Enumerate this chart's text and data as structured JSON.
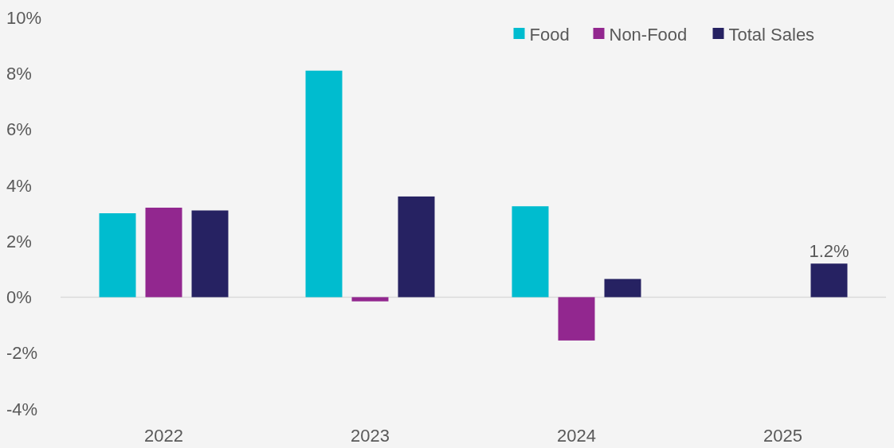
{
  "chart_data": {
    "type": "bar",
    "categories": [
      "2022",
      "2023",
      "2024",
      "2025"
    ],
    "series": [
      {
        "name": "Food",
        "color": "#00bccf",
        "values": [
          3.0,
          8.1,
          3.25,
          null
        ]
      },
      {
        "name": "Non-Food",
        "color": "#92278f",
        "values": [
          3.2,
          -0.15,
          -1.55,
          null
        ]
      },
      {
        "name": "Total Sales",
        "color": "#262262",
        "values": [
          3.1,
          3.6,
          0.65,
          1.2
        ],
        "value_labels": [
          null,
          null,
          null,
          "1.2%"
        ]
      }
    ],
    "ylim": [
      -4,
      10
    ],
    "yticks": [
      {
        "value": -4,
        "label": "-4%"
      },
      {
        "value": -2,
        "label": "-2%"
      },
      {
        "value": 0,
        "label": "0%"
      },
      {
        "value": 2,
        "label": "2%"
      },
      {
        "value": 4,
        "label": "4%"
      },
      {
        "value": 6,
        "label": "6%"
      },
      {
        "value": 8,
        "label": "8%"
      },
      {
        "value": 10,
        "label": "10%"
      }
    ],
    "legend": "top right",
    "ref_lines": [
      {
        "axis": "y",
        "value": 0,
        "color": "#d9d9d9"
      }
    ]
  }
}
